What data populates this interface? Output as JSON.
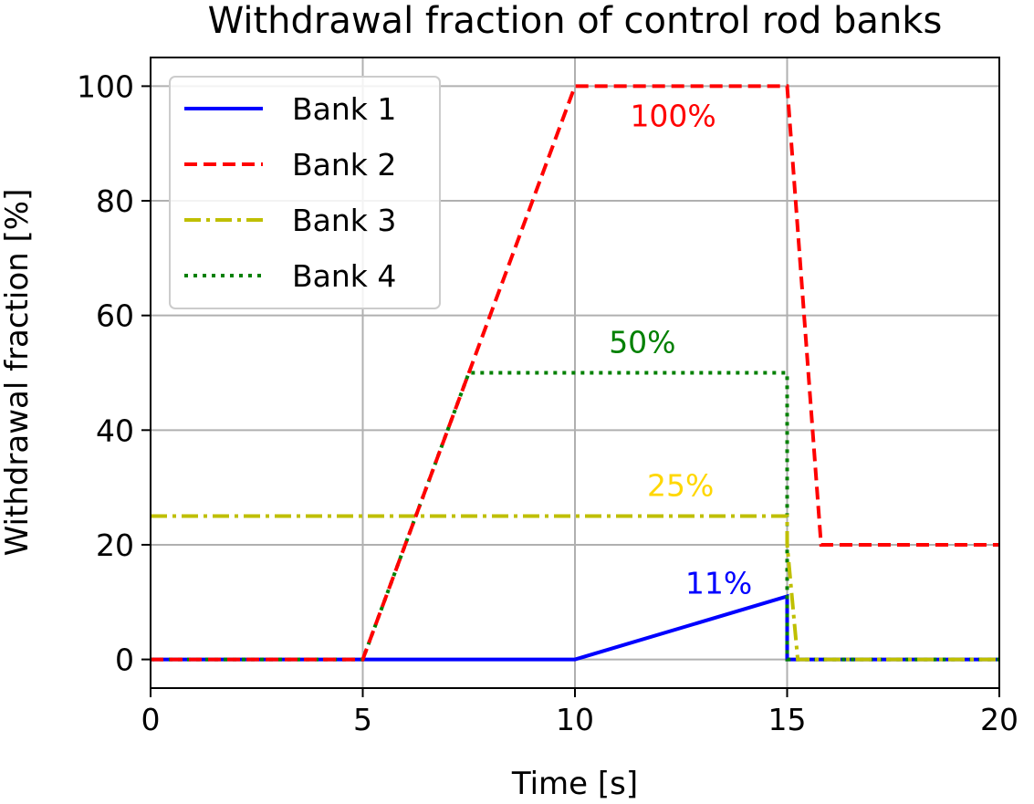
{
  "chart_data": {
    "type": "line",
    "title": "Withdrawal fraction of control rod banks",
    "xlabel": "Time [s]",
    "ylabel": "Withdrawal fraction [%]",
    "xlim": [
      0,
      20
    ],
    "ylim": [
      -5,
      105
    ],
    "xticks": [
      0,
      5,
      10,
      15,
      20
    ],
    "yticks": [
      0,
      20,
      40,
      60,
      80,
      100
    ],
    "xtick_labels": [
      "0",
      "5",
      "10",
      "15",
      "20"
    ],
    "ytick_labels": [
      "0",
      "20",
      "40",
      "60",
      "80",
      "100"
    ],
    "grid": true,
    "legend_position": "top-left",
    "series": [
      {
        "name": "Bank 1",
        "color": "#0000ff",
        "style": "solid",
        "x": [
          0,
          10,
          15,
          15,
          20
        ],
        "y": [
          0,
          0,
          11,
          0,
          0
        ]
      },
      {
        "name": "Bank 2",
        "color": "#ff0000",
        "style": "dashed",
        "x": [
          0,
          5,
          10,
          15,
          15.8,
          20
        ],
        "y": [
          0,
          0,
          100,
          100,
          20,
          20
        ]
      },
      {
        "name": "Bank 3",
        "color": "#bfbf00",
        "style": "dashdot",
        "x": [
          0,
          15,
          15,
          15.25,
          20
        ],
        "y": [
          25,
          25,
          20,
          0,
          0
        ]
      },
      {
        "name": "Bank 4",
        "color": "#008000",
        "style": "dotted",
        "x": [
          0,
          5,
          7.5,
          15,
          15,
          20
        ],
        "y": [
          0,
          0,
          50,
          50,
          0,
          0
        ]
      }
    ],
    "annotations": [
      {
        "text": "100%",
        "x": 11.3,
        "y": 93,
        "color": "#ff0000"
      },
      {
        "text": "50%",
        "x": 10.8,
        "y": 53.5,
        "color": "#008000"
      },
      {
        "text": "25%",
        "x": 11.7,
        "y": 28.5,
        "color": "#ffd700"
      },
      {
        "text": "11%",
        "x": 12.6,
        "y": 11.5,
        "color": "#0000ff"
      }
    ]
  }
}
